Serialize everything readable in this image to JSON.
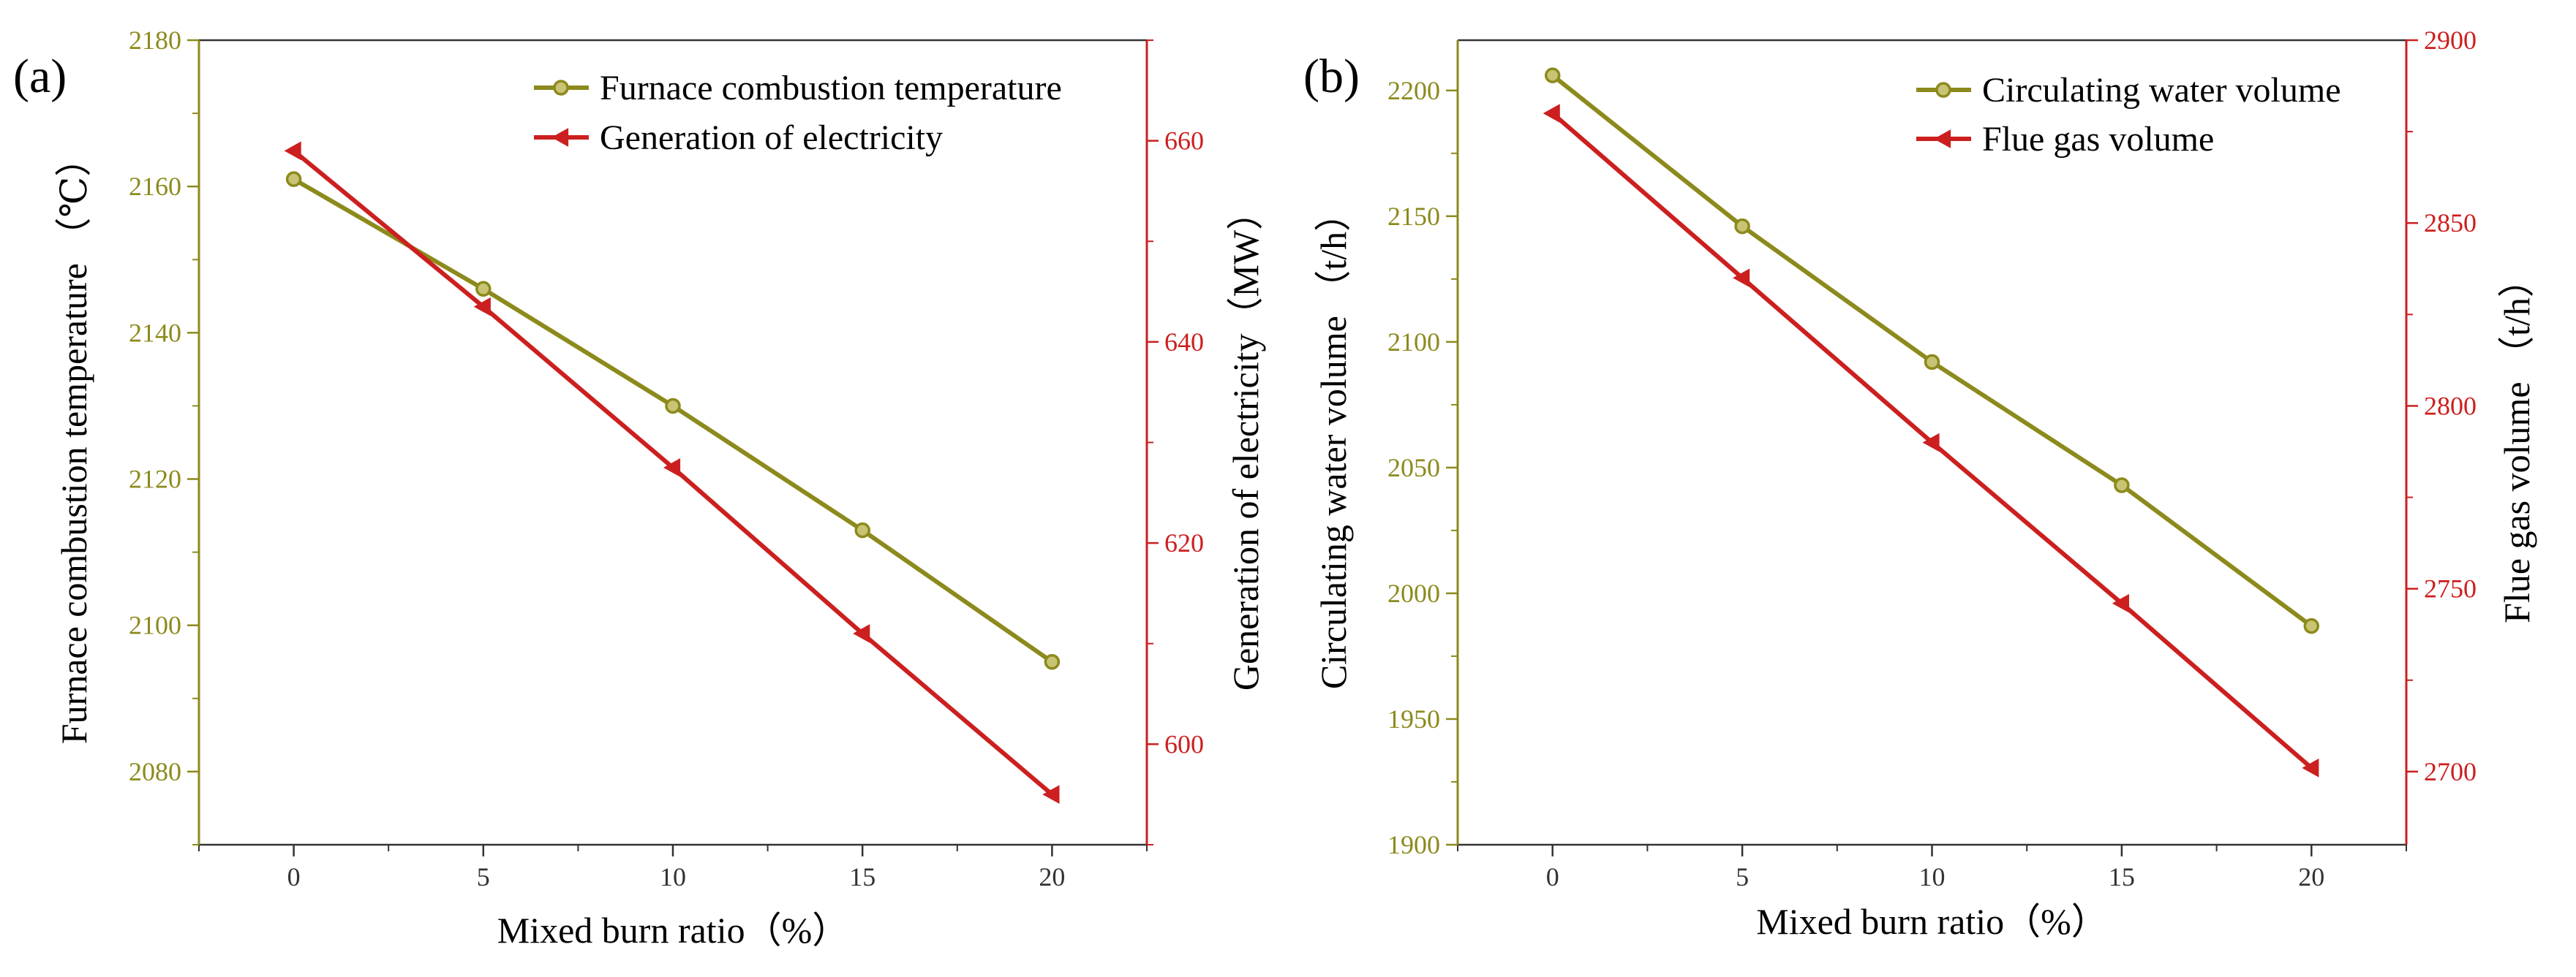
{
  "colors": {
    "olive": "#8c8a1c",
    "red": "#cc1f1f",
    "axis": "#333333"
  },
  "chart_data": [
    {
      "type": "line",
      "panel_label": "(a)",
      "xlabel": "Mixed burn ratio（%）",
      "ylabel_left": "Furnace combustion temperature （℃）",
      "ylabel_right": "Generation of electricity（MW）",
      "x": [
        0,
        5,
        10,
        15,
        20
      ],
      "xticks": [
        "0",
        "5",
        "10",
        "15",
        "20"
      ],
      "xlim": [
        -2.5,
        22.5
      ],
      "ylim_left": [
        2070,
        2180
      ],
      "yticks_left": [
        "2080",
        "2100",
        "2120",
        "2140",
        "2160",
        "2180"
      ],
      "ylim_right": [
        590,
        670
      ],
      "yticks_right": [
        "600",
        "620",
        "640",
        "660"
      ],
      "legend_position": "top-right",
      "series": [
        {
          "name": "Furnace combustion temperature",
          "axis": "left",
          "marker": "circle",
          "values": [
            2161,
            2146,
            2130,
            2113,
            2095
          ]
        },
        {
          "name": "Generation of electricity",
          "axis": "right",
          "marker": "left-triangle",
          "values": [
            659,
            643.5,
            627.5,
            611,
            595
          ]
        }
      ]
    },
    {
      "type": "line",
      "panel_label": "(b)",
      "xlabel": "Mixed burn ratio（%）",
      "ylabel_left": "Circulating water volume （t/h）",
      "ylabel_right": "Flue gas volume （t/h）",
      "x": [
        0,
        5,
        10,
        15,
        20
      ],
      "xticks": [
        "0",
        "5",
        "10",
        "15",
        "20"
      ],
      "xlim": [
        -2.5,
        22.5
      ],
      "ylim_left": [
        1900,
        2220
      ],
      "yticks_left": [
        "1900",
        "1950",
        "2000",
        "2050",
        "2100",
        "2150",
        "2200"
      ],
      "ylim_right": [
        2680,
        2900
      ],
      "yticks_right": [
        "2700",
        "2750",
        "2800",
        "2850",
        "2900"
      ],
      "legend_position": "top-right",
      "series": [
        {
          "name": "Circulating water volume",
          "axis": "left",
          "marker": "circle",
          "values": [
            2206,
            2146,
            2092,
            2043,
            1987
          ]
        },
        {
          "name": "Flue gas volume",
          "axis": "right",
          "marker": "left-triangle",
          "values": [
            2880,
            2835,
            2790,
            2746,
            2701
          ]
        }
      ]
    }
  ]
}
